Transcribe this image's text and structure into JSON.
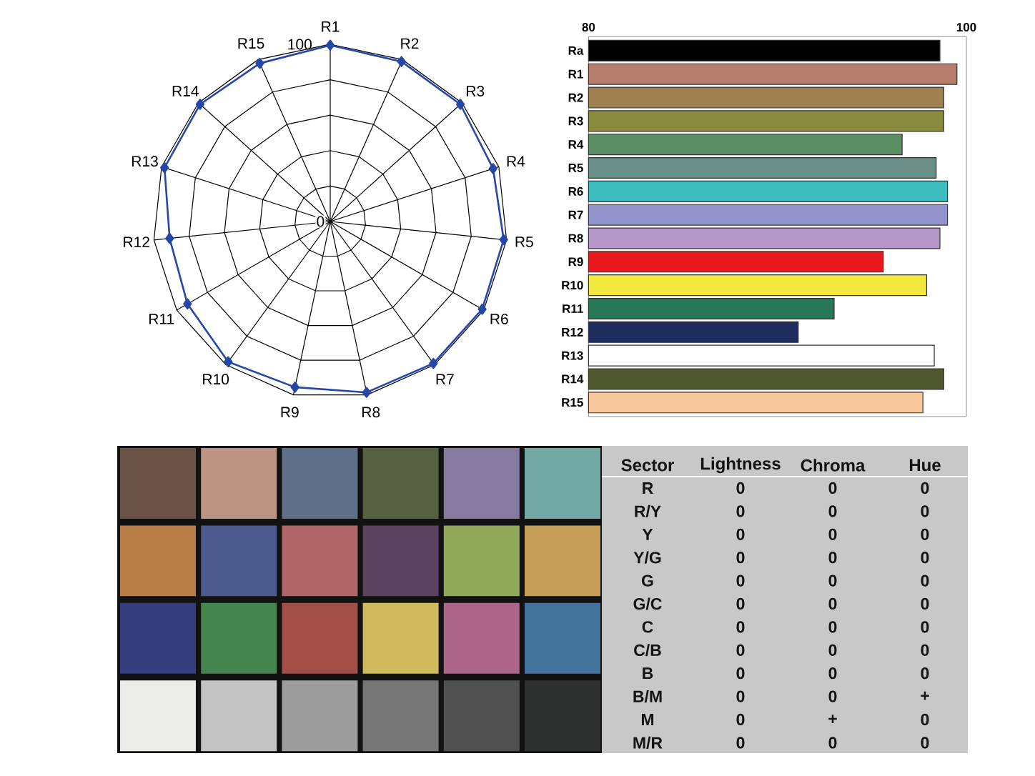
{
  "chart_data": [
    {
      "type": "radar",
      "categories": [
        "R1",
        "R2",
        "R3",
        "R4",
        "R5",
        "R6",
        "R7",
        "R8",
        "R9",
        "R10",
        "R11",
        "R12",
        "R13",
        "R14",
        "R15"
      ],
      "series": [
        {
          "color": "#2447a8",
          "values": [
            99.5,
            98.8,
            98.8,
            96.6,
            98.4,
            99,
            99,
            98.6,
            95.6,
            97.9,
            93,
            91.1,
            98.3,
            98.8,
            97.7
          ]
        }
      ],
      "ylim": [
        0,
        100
      ],
      "yticks": [
        0,
        100
      ],
      "grid": true,
      "marker": "diamond"
    },
    {
      "type": "bar",
      "orientation": "horizontal",
      "categories": [
        "Ra",
        "R1",
        "R2",
        "R3",
        "R4",
        "R5",
        "R6",
        "R7",
        "R8",
        "R9",
        "R10",
        "R11",
        "R12",
        "R13",
        "R14",
        "R15"
      ],
      "values": [
        98.6,
        99.5,
        98.8,
        98.8,
        96.6,
        98.4,
        99,
        99,
        98.6,
        95.6,
        97.9,
        93,
        91.1,
        98.3,
        98.8,
        97.7
      ],
      "colors": [
        "#000000",
        "#b87c6c",
        "#a0804e",
        "#8a8a3e",
        "#5c8e64",
        "#6a8e88",
        "#3cbcbc",
        "#9494cc",
        "#b496c8",
        "#e8181c",
        "#f0e83c",
        "#287858",
        "#1e2c5e",
        "#ffffff",
        "#50582e",
        "#f8c89c"
      ],
      "xlim": [
        80,
        100
      ],
      "xticks": [
        80,
        100
      ]
    },
    {
      "type": "other",
      "ylabel": "Sector",
      "categories": [
        "Lightness",
        "Chroma",
        "Hue"
      ],
      "y_categories": [
        "R",
        "R/Y",
        "Y",
        "Y/G",
        "G",
        "G/C",
        "C",
        "C/B",
        "B",
        "B/M",
        "M",
        "M/R"
      ],
      "cell_labels": [
        [
          "0",
          "0",
          "0"
        ],
        [
          "0",
          "0",
          "0"
        ],
        [
          "0",
          "0",
          "0"
        ],
        [
          "0",
          "0",
          "0"
        ],
        [
          "0",
          "0",
          "0"
        ],
        [
          "0",
          "0",
          "0"
        ],
        [
          "0",
          "0",
          "0"
        ],
        [
          "0",
          "0",
          "0"
        ],
        [
          "0",
          "0",
          "0"
        ],
        [
          "0",
          "0",
          "+"
        ],
        [
          "0",
          "+",
          "0"
        ],
        [
          "0",
          "0",
          "0"
        ]
      ]
    }
  ]
}
